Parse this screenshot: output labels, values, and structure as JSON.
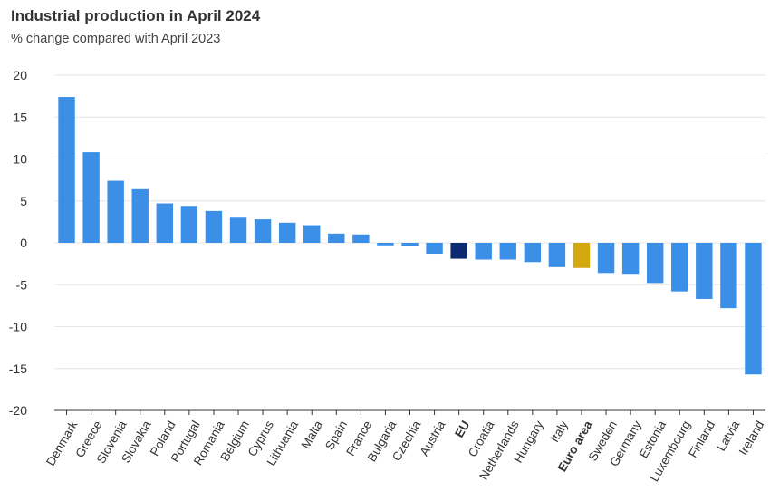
{
  "chart_data": {
    "type": "bar",
    "title": "Industrial production in April 2024",
    "subtitle": "% change compared with April 2023",
    "xlabel": "",
    "ylabel": "",
    "ylim": [
      -20,
      20
    ],
    "yticks": [
      20,
      15,
      10,
      5,
      0,
      -5,
      -10,
      -15,
      -20
    ],
    "grid": true,
    "categories": [
      "Denmark",
      "Greece",
      "Slovenia",
      "Slovakia",
      "Poland",
      "Portugal",
      "Romania",
      "Belgium",
      "Cyprus",
      "Lithuania",
      "Malta",
      "Spain",
      "France",
      "Bulgaria",
      "Czechia",
      "Austria",
      "EU",
      "Croatia",
      "Netherlands",
      "Hungary",
      "Italy",
      "Euro area",
      "Sweden",
      "Germany",
      "Estonia",
      "Luxembourg",
      "Finland",
      "Latvia",
      "Ireland"
    ],
    "values": [
      17.4,
      10.8,
      7.4,
      6.4,
      4.7,
      4.4,
      3.8,
      3.0,
      2.8,
      2.4,
      2.1,
      1.1,
      1.0,
      -0.3,
      -0.4,
      -1.3,
      -1.9,
      -2.0,
      -2.0,
      -2.3,
      -2.9,
      -3.0,
      -3.6,
      -3.7,
      -4.8,
      -5.8,
      -6.7,
      -7.8,
      -15.7
    ],
    "highlight": {
      "EU": "#0b2a6f",
      "Euro area": "#d4a80f"
    },
    "bold_categories": [
      "EU",
      "Euro area"
    ],
    "colors": {
      "bar": "#3b8fe6",
      "grid": "#e6e6e6",
      "axis": "#333333",
      "text": "#333333"
    }
  }
}
